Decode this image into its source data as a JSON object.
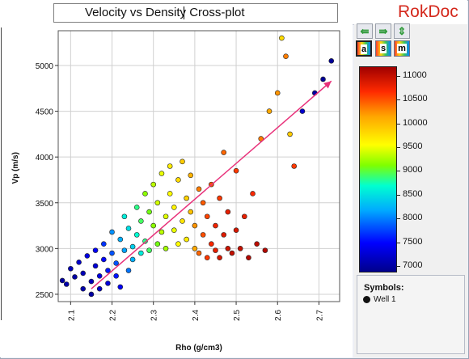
{
  "window": {
    "title": "Velocity vs Density Cross-plot",
    "brand": "RokDoc"
  },
  "toolbar": {
    "pan_left_icon": "arrow-left-icon",
    "pan_right_icon": "arrow-right-icon",
    "pan_vertical_icon": "arrow-updown-icon",
    "mode_buttons": [
      "a",
      "s",
      "m"
    ]
  },
  "colorbar": {
    "ticks": [
      "11000",
      "10500",
      "10000",
      "9500",
      "9000",
      "8500",
      "8000",
      "7500",
      "7000"
    ],
    "values": [
      11000,
      10500,
      10000,
      9500,
      9000,
      8500,
      8000,
      7500,
      7000
    ],
    "min": 6900,
    "max": 11200,
    "colors": [
      "#00008b",
      "#0000ff",
      "#00aaff",
      "#00ffd0",
      "#7fff00",
      "#ffff00",
      "#ffa500",
      "#ff2a00",
      "#a00000"
    ]
  },
  "legend": {
    "title": "Symbols:",
    "items": [
      {
        "label": "Well 1",
        "color": "#111111"
      }
    ]
  },
  "chart_data": {
    "type": "scatter",
    "title": "Velocity vs Density Cross-plot",
    "xlabel": "Rho  (g/cm3)",
    "ylabel": "Vp  (m/s)",
    "xlim": [
      2.07,
      2.75
    ],
    "ylim": [
      2420,
      5380
    ],
    "xticks": [
      "2.1",
      "2.2",
      "2.3",
      "2.4",
      "2.5",
      "2.6",
      "2.7"
    ],
    "xtick_values": [
      2.1,
      2.2,
      2.3,
      2.4,
      2.5,
      2.6,
      2.7
    ],
    "yticks": [
      "2500",
      "3000",
      "3500",
      "4000",
      "4500",
      "5000"
    ],
    "ytick_values": [
      2500,
      3000,
      3500,
      4000,
      4500,
      5000
    ],
    "grid": true,
    "color_scale_range": [
      6900,
      11200
    ],
    "series": [
      {
        "name": "Well 1",
        "points": [
          [
            2.08,
            2650,
            7000
          ],
          [
            2.09,
            2610,
            7050
          ],
          [
            2.1,
            2780,
            7100
          ],
          [
            2.11,
            2690,
            7000
          ],
          [
            2.12,
            2850,
            7200
          ],
          [
            2.13,
            2560,
            7050
          ],
          [
            2.13,
            2730,
            7100
          ],
          [
            2.14,
            2920,
            7300
          ],
          [
            2.15,
            2500,
            7000
          ],
          [
            2.15,
            2640,
            7100
          ],
          [
            2.16,
            2810,
            7250
          ],
          [
            2.16,
            2980,
            7400
          ],
          [
            2.17,
            2560,
            7150
          ],
          [
            2.17,
            2700,
            7300
          ],
          [
            2.18,
            3050,
            7600
          ],
          [
            2.18,
            2880,
            7450
          ],
          [
            2.19,
            2620,
            7250
          ],
          [
            2.19,
            2760,
            7500
          ],
          [
            2.2,
            3180,
            7900
          ],
          [
            2.2,
            2950,
            7700
          ],
          [
            2.21,
            2700,
            7500
          ],
          [
            2.21,
            2840,
            7700
          ],
          [
            2.22,
            3100,
            8000
          ],
          [
            2.22,
            2580,
            7400
          ],
          [
            2.23,
            2980,
            7950
          ],
          [
            2.23,
            3350,
            8400
          ],
          [
            2.24,
            2760,
            7800
          ],
          [
            2.24,
            3220,
            8300
          ],
          [
            2.25,
            3020,
            8200
          ],
          [
            2.25,
            2880,
            8000
          ],
          [
            2.26,
            3450,
            8700
          ],
          [
            2.26,
            3150,
            8500
          ],
          [
            2.27,
            2950,
            8400
          ],
          [
            2.27,
            3300,
            8800
          ],
          [
            2.28,
            3600,
            9100
          ],
          [
            2.28,
            3080,
            8700
          ],
          [
            2.29,
            3400,
            9000
          ],
          [
            2.29,
            2980,
            8800
          ],
          [
            2.3,
            3700,
            9300
          ],
          [
            2.3,
            3250,
            9100
          ],
          [
            2.31,
            3050,
            9000
          ],
          [
            2.31,
            3500,
            9400
          ],
          [
            2.32,
            3180,
            9300
          ],
          [
            2.32,
            3820,
            9500
          ],
          [
            2.33,
            3350,
            9450
          ],
          [
            2.33,
            3000,
            9200
          ],
          [
            2.34,
            3600,
            9600
          ],
          [
            2.34,
            3900,
            9700
          ],
          [
            2.35,
            3200,
            9500
          ],
          [
            2.35,
            3450,
            9650
          ],
          [
            2.36,
            3050,
            9600
          ],
          [
            2.36,
            3750,
            9800
          ],
          [
            2.37,
            3300,
            9750
          ],
          [
            2.37,
            3950,
            9900
          ],
          [
            2.38,
            3550,
            9850
          ],
          [
            2.38,
            3100,
            9700
          ],
          [
            2.39,
            3400,
            9950
          ],
          [
            2.39,
            3800,
            10050
          ],
          [
            2.4,
            3000,
            10100
          ],
          [
            2.4,
            3250,
            10200
          ],
          [
            2.41,
            3650,
            10300
          ],
          [
            2.41,
            2950,
            10400
          ],
          [
            2.42,
            3150,
            10500
          ],
          [
            2.42,
            3500,
            10450
          ],
          [
            2.43,
            2900,
            10600
          ],
          [
            2.43,
            3350,
            10550
          ],
          [
            2.44,
            3050,
            10700
          ],
          [
            2.44,
            3700,
            10500
          ],
          [
            2.45,
            2980,
            10800
          ],
          [
            2.45,
            3250,
            10750
          ],
          [
            2.46,
            3550,
            10600
          ],
          [
            2.46,
            2900,
            10900
          ],
          [
            2.47,
            3150,
            10850
          ],
          [
            2.47,
            4050,
            10400
          ],
          [
            2.48,
            3000,
            10950
          ],
          [
            2.48,
            3400,
            10800
          ],
          [
            2.49,
            2950,
            11000
          ],
          [
            2.5,
            3200,
            10900
          ],
          [
            2.5,
            3850,
            10600
          ],
          [
            2.51,
            3000,
            11000
          ],
          [
            2.52,
            3350,
            10800
          ],
          [
            2.53,
            2900,
            11100
          ],
          [
            2.54,
            3600,
            10700
          ],
          [
            2.55,
            3050,
            11050
          ],
          [
            2.56,
            4200,
            10300
          ],
          [
            2.57,
            2980,
            11100
          ],
          [
            2.58,
            4500,
            10100
          ],
          [
            2.6,
            4700,
            10200
          ],
          [
            2.61,
            5300,
            9800
          ],
          [
            2.62,
            5100,
            10300
          ],
          [
            2.63,
            4250,
            9900
          ],
          [
            2.64,
            3900,
            10600
          ],
          [
            2.66,
            4500,
            7200
          ],
          [
            2.69,
            4700,
            7000
          ],
          [
            2.71,
            4850,
            6950
          ],
          [
            2.73,
            5050,
            6950
          ]
        ]
      }
    ],
    "trend_line": {
      "x": [
        2.15,
        2.73
      ],
      "y": [
        2560,
        4830
      ],
      "color": "#e8317a"
    }
  }
}
